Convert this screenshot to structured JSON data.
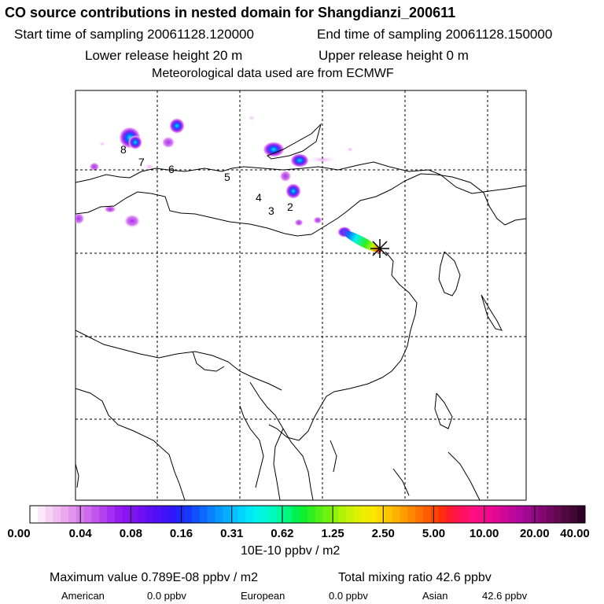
{
  "header": {
    "title": "CO  source contributions in nested domain for Shangdianzi_200611",
    "start": "Start time of sampling 20061128.120000",
    "end": "End time of sampling 20061128.150000",
    "lower": "Lower release height   20 m",
    "upper": "Upper release height    0 m",
    "meteo": "Meteorological data used are from ECMWF"
  },
  "map": {
    "label_numbers": [
      "8",
      "7",
      "6",
      "5",
      "4",
      "3",
      "2"
    ],
    "station_marker": "star-icon"
  },
  "colorbar": {
    "ticks": [
      "0.00",
      "0.04",
      "0.08",
      "0.16",
      "0.31",
      "0.62",
      "1.25",
      "2.50",
      "5.00",
      "10.00",
      "20.00",
      "40.00"
    ],
    "colors": [
      "#ffffff",
      "#fbe9fb",
      "#f6d3f6",
      "#f0bef0",
      "#eba8ee",
      "#e294ee",
      "#d87fee",
      "#cd6aee",
      "#c155ee",
      "#b440ee",
      "#a52ef0",
      "#961df2",
      "#8a14f2",
      "#7d12f2",
      "#6f10f2",
      "#600ef4",
      "#5010f6",
      "#3f12f8",
      "#2e18fa",
      "#1f26fc",
      "#1638fe",
      "#1050ff",
      "#0c68ff",
      "#0a80ff",
      "#0896ff",
      "#06acff",
      "#04c2ff",
      "#02d6ff",
      "#00e8f8",
      "#00f4ea",
      "#00f8d8",
      "#00fac2",
      "#00fa9e",
      "#00f878",
      "#00f050",
      "#10ee30",
      "#30ee20",
      "#50f018",
      "#70f210",
      "#90f40a",
      "#b0f408",
      "#c8f206",
      "#e0f004",
      "#f0ec02",
      "#fae800",
      "#ffd800",
      "#ffc400",
      "#ffb000",
      "#ff9c00",
      "#ff8800",
      "#ff7200",
      "#ff5c00",
      "#ff4400",
      "#ff2c10",
      "#ff1a30",
      "#ff1250",
      "#ff1068",
      "#ff0e80",
      "#f80c8a",
      "#ec0a90",
      "#e00894",
      "#d00898",
      "#c0089a",
      "#b0089c",
      "#a00890",
      "#900880",
      "#800870",
      "#700860",
      "#600850",
      "#500840",
      "#400830",
      "#300028"
    ],
    "unit": "10E-10 ppbv / m2"
  },
  "summary": {
    "max_label": "Maximum value  0.789E-08 ppbv / m2",
    "total_label": "Total mixing ratio       42.6 ppbv",
    "regions": [
      {
        "name": "American",
        "value": "0.0 ppbv"
      },
      {
        "name": "European",
        "value": "0.0 ppbv"
      },
      {
        "name": "Asian",
        "value": "42.6 ppbv"
      }
    ]
  }
}
